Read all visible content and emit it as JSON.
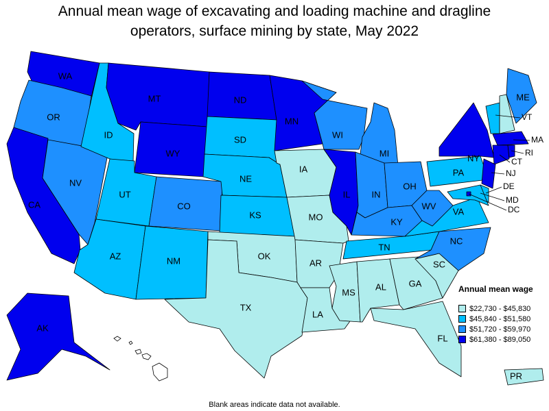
{
  "title_line1": "Annual mean wage of excavating and loading machine and dragline",
  "title_line2": "operators, surface mining by state, May 2022",
  "legend": {
    "title": "Annual mean wage",
    "items": [
      {
        "label": "$22,730 - $45,830",
        "color": "#b0eded"
      },
      {
        "label": "$45,840 - $51,580",
        "color": "#00bfff"
      },
      {
        "label": "$51,720 - $59,970",
        "color": "#1e90ff"
      },
      {
        "label": "$61,380 - $89,050",
        "color": "#0000ee"
      }
    ]
  },
  "note": "Blank areas indicate data not available.",
  "chart_data": {
    "type": "choropleth",
    "title": "Annual mean wage of excavating and loading machine and dragline operators, surface mining by state, May 2022",
    "legend_title": "Annual mean wage",
    "bins": [
      "$22,730 - $45,830",
      "$45,840 - $51,580",
      "$51,720 - $59,970",
      "$61,380 - $89,050"
    ],
    "states": {
      "WA": 3,
      "OR": 2,
      "CA": 3,
      "NV": 2,
      "ID": 1,
      "MT": 3,
      "WY": 3,
      "UT": 1,
      "AZ": 1,
      "CO": 2,
      "NM": 1,
      "ND": 3,
      "SD": 1,
      "NE": 1,
      "KS": 1,
      "OK": 0,
      "TX": 0,
      "MN": 3,
      "IA": 0,
      "MO": 0,
      "AR": 0,
      "LA": 0,
      "WI": 2,
      "IL": 3,
      "MI": 2,
      "IN": 2,
      "OH": 2,
      "KY": 2,
      "TN": 1,
      "MS": 0,
      "AL": 0,
      "GA": 0,
      "FL": 0,
      "SC": 0,
      "NC": 2,
      "VA": 1,
      "WV": 2,
      "PA": 1,
      "NY": 3,
      "VT": 1,
      "NH": 0,
      "ME": 2,
      "MA": 3,
      "CT": 3,
      "RI": 3,
      "NJ": 3,
      "DE": 1,
      "MD": 1,
      "DC": 3,
      "AK": 3,
      "PR": 0
    },
    "no_data": [
      "HI"
    ]
  }
}
